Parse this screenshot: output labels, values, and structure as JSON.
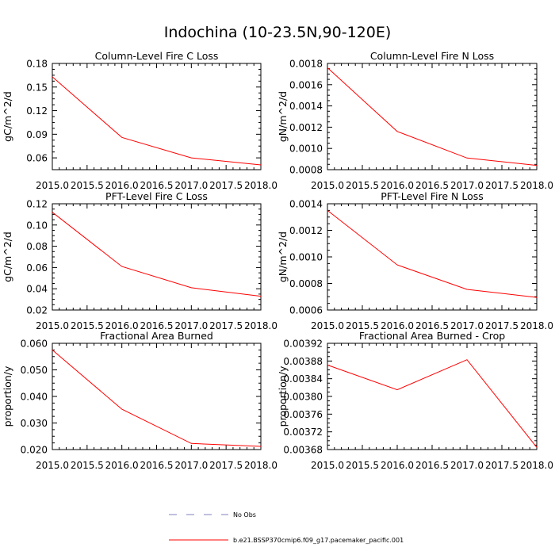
{
  "title": "Indochina (10-23.5N,90-120E)",
  "colors": {
    "model": "#ff0000",
    "obs": "#8080c0",
    "axis": "#000000"
  },
  "legend": {
    "obs_label": "No Obs",
    "model_label": "b.e21.BSSP370cmip6.f09_g17.pacemaker_pacific.001"
  },
  "chart_data": [
    {
      "type": "line",
      "title": "Column-Level Fire C Loss",
      "ylabel": "gC/m^2/d",
      "x": [
        2015.0,
        2016.0,
        2017.0,
        2018.0
      ],
      "series": [
        {
          "name": "b.e21.BSSP370cmip6.f09_g17.pacemaker_pacific.001",
          "values": [
            0.163,
            0.086,
            0.06,
            0.051
          ]
        }
      ],
      "xlim": [
        2015.0,
        2018.0
      ],
      "ylim": [
        0.045,
        0.18
      ],
      "xticks": [
        "2015.0",
        "2015.5",
        "2016.0",
        "2016.5",
        "2017.0",
        "2017.5",
        "2018.0"
      ],
      "yticks": [
        "0.06",
        "0.09",
        "0.12",
        "0.15",
        "0.18"
      ]
    },
    {
      "type": "line",
      "title": "Column-Level Fire N Loss",
      "ylabel": "gN/m^2/d",
      "x": [
        2015.0,
        2016.0,
        2017.0,
        2018.0
      ],
      "series": [
        {
          "name": "b.e21.BSSP370cmip6.f09_g17.pacemaker_pacific.001",
          "values": [
            0.00176,
            0.00116,
            0.00091,
            0.00084
          ]
        }
      ],
      "xlim": [
        2015.0,
        2018.0
      ],
      "ylim": [
        0.0008,
        0.0018
      ],
      "xticks": [
        "2015.0",
        "2015.5",
        "2016.0",
        "2016.5",
        "2017.0",
        "2017.5",
        "2018.0"
      ],
      "yticks": [
        "0.0008",
        "0.0010",
        "0.0012",
        "0.0014",
        "0.0016",
        "0.0018"
      ]
    },
    {
      "type": "line",
      "title": "PFT-Level Fire C Loss",
      "ylabel": "gC/m^2/d",
      "x": [
        2015.0,
        2016.0,
        2017.0,
        2018.0
      ],
      "series": [
        {
          "name": "b.e21.BSSP370cmip6.f09_g17.pacemaker_pacific.001",
          "values": [
            0.112,
            0.061,
            0.041,
            0.033
          ]
        }
      ],
      "xlim": [
        2015.0,
        2018.0
      ],
      "ylim": [
        0.02,
        0.12
      ],
      "xticks": [
        "2015.0",
        "2015.5",
        "2016.0",
        "2016.5",
        "2017.0",
        "2017.5",
        "2018.0"
      ],
      "yticks": [
        "0.02",
        "0.04",
        "0.06",
        "0.08",
        "0.10",
        "0.12"
      ]
    },
    {
      "type": "line",
      "title": "PFT-Level Fire N Loss",
      "ylabel": "gN/m^2/d",
      "x": [
        2015.0,
        2016.0,
        2017.0,
        2018.0
      ],
      "series": [
        {
          "name": "b.e21.BSSP370cmip6.f09_g17.pacemaker_pacific.001",
          "values": [
            0.00135,
            0.00094,
            0.000755,
            0.000695
          ]
        }
      ],
      "xlim": [
        2015.0,
        2018.0
      ],
      "ylim": [
        0.0006,
        0.0014
      ],
      "xticks": [
        "2015.0",
        "2015.5",
        "2016.0",
        "2016.5",
        "2017.0",
        "2017.5",
        "2018.0"
      ],
      "yticks": [
        "0.0006",
        "0.0008",
        "0.0010",
        "0.0012",
        "0.0014"
      ]
    },
    {
      "type": "line",
      "title": "Fractional Area Burned",
      "ylabel": "proportion/y",
      "x": [
        2015.0,
        2016.0,
        2017.0,
        2018.0
      ],
      "series": [
        {
          "name": "b.e21.BSSP370cmip6.f09_g17.pacemaker_pacific.001",
          "values": [
            0.0575,
            0.0352,
            0.0223,
            0.0212
          ]
        }
      ],
      "xlim": [
        2015.0,
        2018.0
      ],
      "ylim": [
        0.02,
        0.06
      ],
      "xticks": [
        "2015.0",
        "2015.5",
        "2016.0",
        "2016.5",
        "2017.0",
        "2017.5",
        "2018.0"
      ],
      "yticks": [
        "0.020",
        "0.030",
        "0.040",
        "0.050",
        "0.060"
      ]
    },
    {
      "type": "line",
      "title": "Fractional Area Burned - Crop",
      "ylabel": "proportion/y",
      "x": [
        2015.0,
        2016.0,
        2017.0,
        2018.0
      ],
      "series": [
        {
          "name": "b.e21.BSSP370cmip6.f09_g17.pacemaker_pacific.001",
          "values": [
            0.003871,
            0.003815,
            0.003883,
            0.003685
          ]
        }
      ],
      "xlim": [
        2015.0,
        2018.0
      ],
      "ylim": [
        0.00368,
        0.00392
      ],
      "xticks": [
        "2015.0",
        "2015.5",
        "2016.0",
        "2016.5",
        "2017.0",
        "2017.5",
        "2018.0"
      ],
      "yticks": [
        "0.00368",
        "0.00372",
        "0.00376",
        "0.00380",
        "0.00384",
        "0.00388",
        "0.00392"
      ]
    }
  ]
}
